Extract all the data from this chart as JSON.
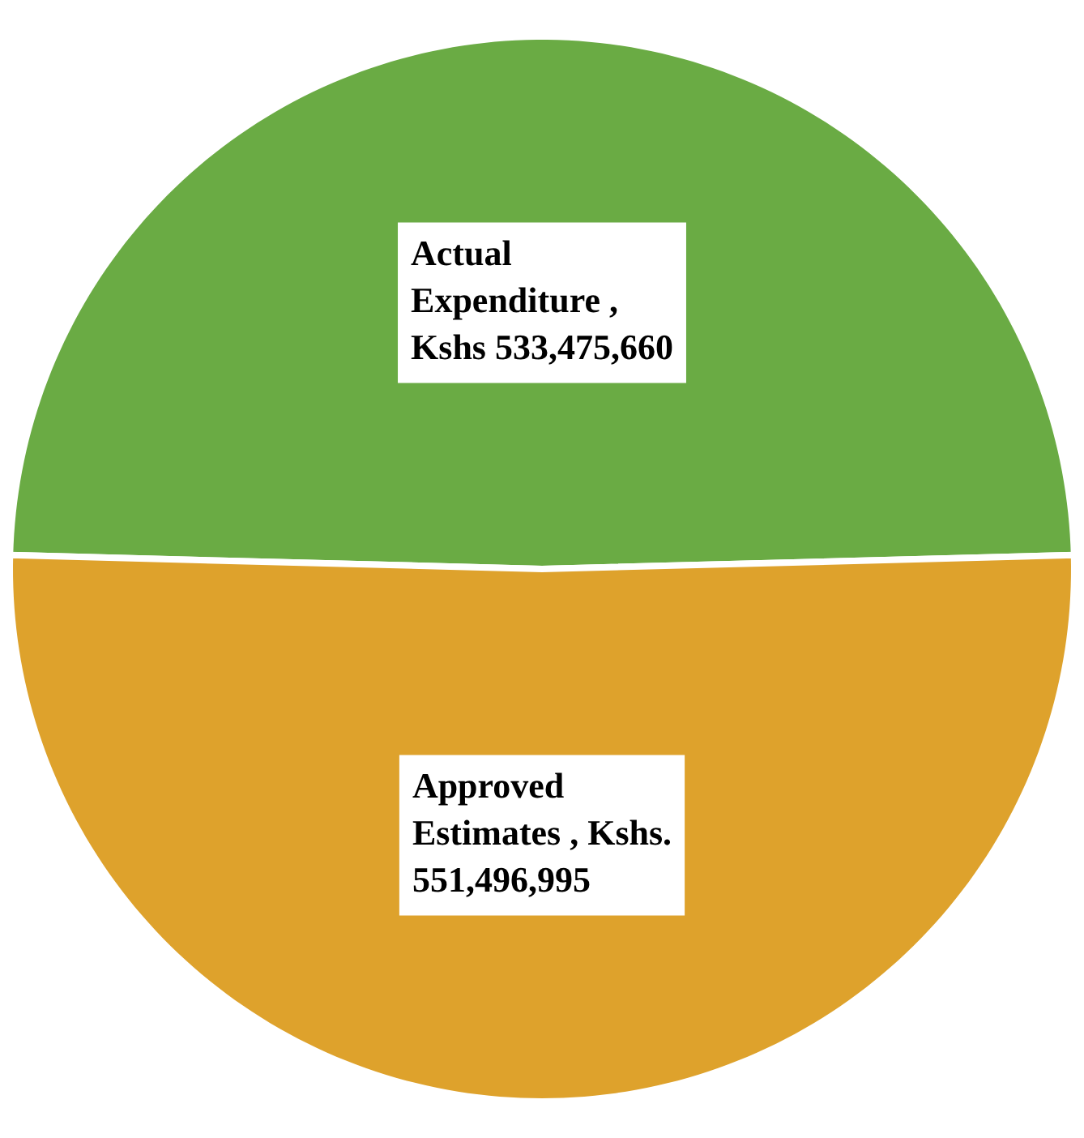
{
  "chart_data": {
    "type": "pie",
    "categories": [
      "Actual Expenditure , Kshs 533,475,660",
      "Approved Estimates , Kshs. 551,496,995"
    ],
    "values": [
      533475660,
      551496995
    ],
    "colors": [
      "#6aab44",
      "#dea22c"
    ],
    "legend": false
  }
}
